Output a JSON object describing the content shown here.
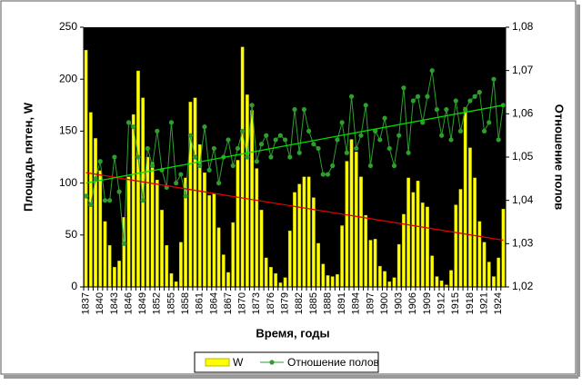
{
  "chart_data": {
    "type": "bar_line",
    "y_label": "Площадь пятен, W",
    "y2_label": "Отношение полов",
    "x_label": "Время, годы",
    "categories": [
      "1837",
      null,
      null,
      "1840",
      null,
      null,
      "1843",
      null,
      null,
      "1846",
      null,
      null,
      "1849",
      null,
      null,
      "1852",
      null,
      null,
      "1855",
      null,
      null,
      "1858",
      null,
      null,
      "1861",
      null,
      null,
      "1864",
      null,
      null,
      "1867",
      null,
      null,
      "1870",
      null,
      null,
      "1873",
      null,
      null,
      "1876",
      null,
      null,
      "1879",
      null,
      null,
      "1882",
      null,
      null,
      "1885",
      null,
      null,
      "1888",
      null,
      null,
      "1891",
      null,
      null,
      "1894",
      null,
      null,
      "1897",
      null,
      null,
      "1900",
      null,
      null,
      "1903",
      null,
      null,
      "1906",
      null,
      null,
      "1909",
      null,
      null,
      "1912",
      null,
      null,
      "1915",
      null,
      null,
      "1918",
      null,
      null,
      "1921",
      null,
      null,
      "1924",
      null
    ],
    "series": [
      {
        "name": "W",
        "kind": "bar",
        "axis": "y",
        "color": "#ffff00",
        "values": [
          228,
          168,
          143,
          112,
          63,
          40,
          19,
          25,
          67,
          106,
          166,
          208,
          182,
          125,
          120,
          103,
          74,
          40,
          13,
          5,
          43,
          105,
          178,
          182,
          137,
          110,
          88,
          90,
          57,
          31,
          14,
          62,
          122,
          231,
          185,
          170,
          114,
          74,
          28,
          19,
          13,
          4,
          9,
          54,
          91,
          99,
          106,
          106,
          86,
          42,
          22,
          11,
          10,
          12,
          59,
          121,
          142,
          130,
          106,
          69,
          45,
          46,
          20,
          15,
          5,
          9,
          41,
          70,
          105,
          91,
          102,
          81,
          77,
          30,
          10,
          6,
          2,
          16,
          79,
          94,
          173,
          134,
          105,
          63,
          43,
          24,
          10,
          28,
          75
        ]
      },
      {
        "name": "Отношение полов",
        "kind": "line",
        "axis": "y2",
        "color": "#2e9e2e",
        "values": [
          1.041,
          1.039,
          1.045,
          1.049,
          1.04,
          1.04,
          1.05,
          1.042,
          1.03,
          1.058,
          1.057,
          1.05,
          1.04,
          1.052,
          1.048,
          1.056,
          1.047,
          1.043,
          1.058,
          1.044,
          1.046,
          1.041,
          1.055,
          1.05,
          1.048,
          1.057,
          1.047,
          1.052,
          1.044,
          1.05,
          1.054,
          1.048,
          1.052,
          1.056,
          1.05,
          1.062,
          1.049,
          1.053,
          1.055,
          1.05,
          1.054,
          1.055,
          1.054,
          1.05,
          1.061,
          1.051,
          1.061,
          1.056,
          1.053,
          1.052,
          1.046,
          1.046,
          1.048,
          1.054,
          1.058,
          1.051,
          1.064,
          1.052,
          1.055,
          1.062,
          1.048,
          1.056,
          1.054,
          1.059,
          1.052,
          1.048,
          1.055,
          1.066,
          1.051,
          1.063,
          1.064,
          1.058,
          1.064,
          1.07,
          1.061,
          1.055,
          1.061,
          1.054,
          1.063,
          1.056,
          1.061,
          1.063,
          1.064,
          1.065,
          1.056,
          1.058,
          1.068,
          1.054,
          1.062
        ]
      }
    ],
    "trendlines": [
      {
        "axis": "y",
        "color": "#e00000",
        "values": [
          110,
          45
        ]
      },
      {
        "axis": "y2",
        "color": "#00dd00",
        "values": [
          1.044,
          1.062
        ]
      }
    ],
    "ylim": [
      0,
      250
    ],
    "yticks": [
      0,
      50,
      100,
      150,
      200,
      250
    ],
    "y2lim": [
      1.02,
      1.08
    ],
    "y2ticks": [
      {
        "value": 1.02,
        "label": "1,02"
      },
      {
        "value": 1.03,
        "label": "1,03"
      },
      {
        "value": 1.04,
        "label": "1,04"
      },
      {
        "value": 1.05,
        "label": "1,05"
      },
      {
        "value": 1.06,
        "label": "1,06"
      },
      {
        "value": 1.07,
        "label": "1,07"
      },
      {
        "value": 1.08,
        "label": "1,08"
      }
    ],
    "background": "#000000",
    "grid": false
  }
}
